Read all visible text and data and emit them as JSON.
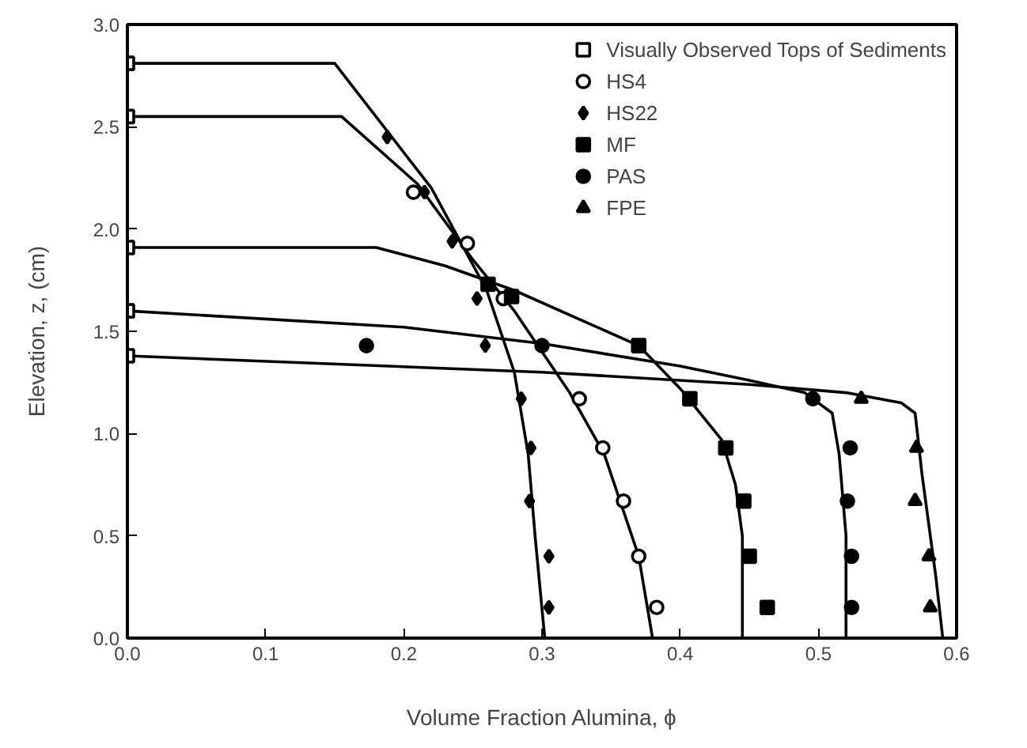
{
  "chart_data": {
    "type": "scatter",
    "xlabel": "Volume Fraction Alumina, ϕ",
    "ylabel": "Elevation, z, (cm)",
    "xlim": [
      0,
      0.6
    ],
    "ylim": [
      0,
      3.0
    ],
    "xticks": [
      {
        "value": 0,
        "label": "0.0"
      },
      {
        "value": 0.1,
        "label": "0.1"
      },
      {
        "value": 0.2,
        "label": "0.2"
      },
      {
        "value": 0.3,
        "label": "0.3"
      },
      {
        "value": 0.4,
        "label": "0.4"
      },
      {
        "value": 0.5,
        "label": "0.5"
      },
      {
        "value": 0.6,
        "label": "0.6"
      }
    ],
    "yticks": [
      {
        "value": 0,
        "label": "0.0"
      },
      {
        "value": 0.5,
        "label": "0.5"
      },
      {
        "value": 1.0,
        "label": "1.0"
      },
      {
        "value": 1.5,
        "label": "1.5"
      },
      {
        "value": 2.0,
        "label": "2.0"
      },
      {
        "value": 2.5,
        "label": "2.5"
      },
      {
        "value": 3.0,
        "label": "3.0"
      }
    ],
    "grid": false,
    "legend": "top right",
    "series": [
      {
        "type": "line",
        "color": "#000000",
        "x": [
          0,
          0.15,
          0.22,
          0.26,
          0.28,
          0.29,
          0.295,
          0.302
        ],
        "values": [
          2.81,
          2.81,
          2.2,
          1.7,
          1.3,
          0.9,
          0.5,
          0
        ]
      },
      {
        "type": "line",
        "color": "#000000",
        "x": [
          0,
          0.155,
          0.21,
          0.25,
          0.28,
          0.32,
          0.345,
          0.37,
          0.38
        ],
        "values": [
          2.55,
          2.55,
          2.22,
          1.85,
          1.6,
          1.2,
          0.9,
          0.4,
          0
        ]
      },
      {
        "type": "line",
        "color": "#000000",
        "x": [
          0,
          0.18,
          0.23,
          0.28,
          0.33,
          0.37,
          0.4,
          0.43,
          0.44,
          0.445,
          0.445
        ],
        "values": [
          1.91,
          1.91,
          1.82,
          1.7,
          1.55,
          1.43,
          1.22,
          0.97,
          0.75,
          0.5,
          0
        ]
      },
      {
        "type": "line",
        "color": "#000000",
        "x": [
          0,
          0.2,
          0.3,
          0.4,
          0.45,
          0.49,
          0.51,
          0.515,
          0.52,
          0.52
        ],
        "values": [
          1.6,
          1.52,
          1.44,
          1.33,
          1.26,
          1.2,
          1.1,
          0.9,
          0.5,
          0
        ]
      },
      {
        "type": "line",
        "color": "#000000",
        "x": [
          0,
          0.3,
          0.45,
          0.52,
          0.56,
          0.57,
          0.575,
          0.585,
          0.59
        ],
        "values": [
          1.38,
          1.3,
          1.24,
          1.2,
          1.15,
          1.1,
          0.8,
          0.3,
          0
        ]
      },
      {
        "name": "Visually Observed Tops of Sediments",
        "marker": "square",
        "color": "#ffffff",
        "x": [
          0,
          0,
          0,
          0,
          0
        ],
        "values": [
          2.81,
          2.55,
          1.91,
          1.6,
          1.38
        ]
      },
      {
        "name": "HS4",
        "marker": "circle",
        "color": "#ffffff",
        "x": [
          0.207,
          0.246,
          0.272,
          0.327,
          0.344,
          0.359,
          0.37,
          0.383
        ],
        "values": [
          2.18,
          1.93,
          1.66,
          1.17,
          0.93,
          0.67,
          0.4,
          0.15
        ]
      },
      {
        "name": "HS22",
        "marker": "diamond",
        "color": "#000000",
        "x": [
          0.188,
          0.215,
          0.235,
          0.253,
          0.259,
          0.285,
          0.292,
          0.291,
          0.305,
          0.305
        ],
        "values": [
          2.45,
          2.18,
          1.94,
          1.66,
          1.43,
          1.17,
          0.93,
          0.67,
          0.4,
          0.15
        ]
      },
      {
        "name": "MF",
        "marker": "square",
        "color": "#000000",
        "x": [
          0.261,
          0.278,
          0.37,
          0.407,
          0.433,
          0.446,
          0.45,
          0.463
        ],
        "values": [
          1.73,
          1.67,
          1.43,
          1.17,
          0.93,
          0.67,
          0.4,
          0.15
        ]
      },
      {
        "name": "PAS",
        "marker": "circle",
        "color": "#000000",
        "x": [
          0.173,
          0.3,
          0.496,
          0.523,
          0.521,
          0.524,
          0.524
        ],
        "values": [
          1.43,
          1.43,
          1.17,
          0.93,
          0.67,
          0.4,
          0.15
        ]
      },
      {
        "name": "FPE",
        "marker": "triangle",
        "color": "#000000",
        "x": [
          0.531,
          0.571,
          0.57,
          0.58,
          0.581
        ],
        "values": [
          1.17,
          0.93,
          0.67,
          0.4,
          0.15
        ]
      }
    ]
  }
}
